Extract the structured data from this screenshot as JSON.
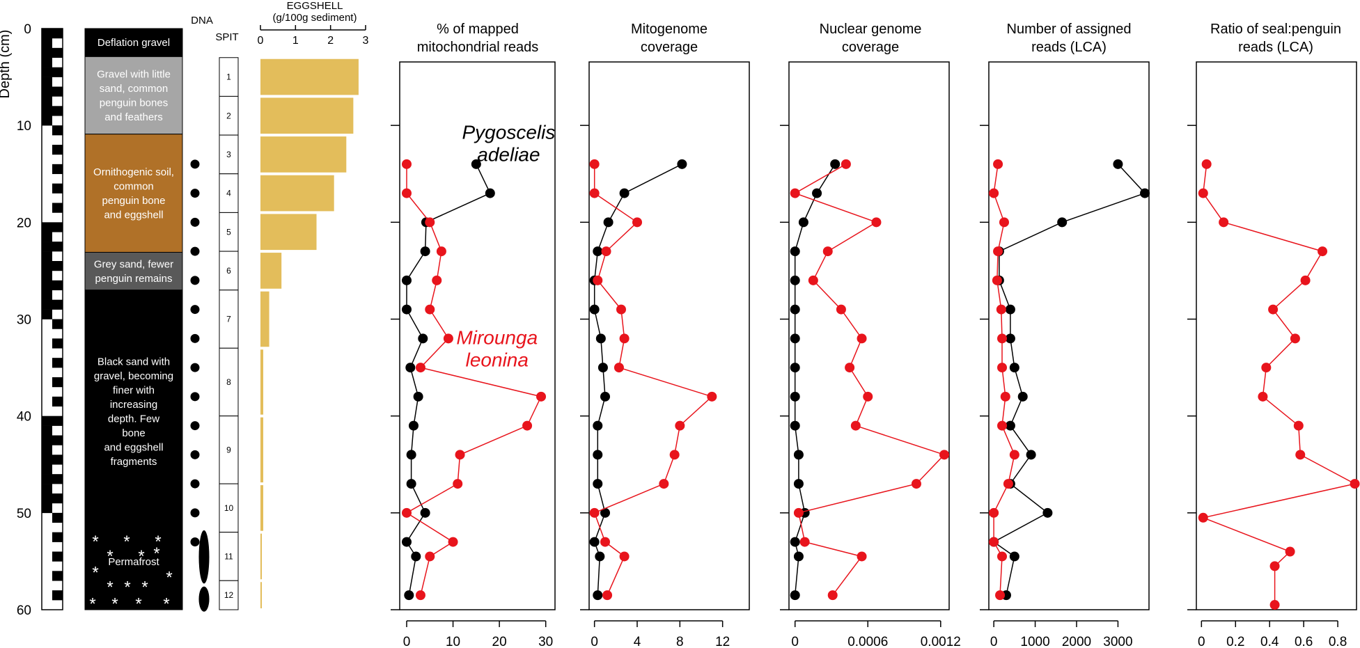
{
  "depth_axis": {
    "label": "Depth (cm)",
    "ticks": [
      "0",
      "10",
      "20",
      "30",
      "40",
      "50",
      "60"
    ],
    "ylim": [
      0,
      60
    ]
  },
  "strat": {
    "dna_label": "DNA",
    "spit_label": "SPIT",
    "units": [
      {
        "text": "Deflation gravel",
        "top": 0,
        "bottom": 2.9,
        "color": "#000000",
        "text_color": "#ffffff"
      },
      {
        "text": "Gravel with little\nsand, common\npenguin bones\nand feathers",
        "top": 2.9,
        "bottom": 10.9,
        "color": "#a6a6a6",
        "text_color": "#ffffff"
      },
      {
        "text": "Ornithogenic soil,\ncommon\npenguin bone\nand eggshell",
        "top": 10.9,
        "bottom": 23.1,
        "color": "#b07128",
        "text_color": "#ffffff"
      },
      {
        "text": "Grey sand, fewer\npenguin remains",
        "top": 23.1,
        "bottom": 27.0,
        "color": "#595959",
        "text_color": "#ffffff"
      },
      {
        "text": "Black sand with\ngravel, becoming\nfiner with\nincreasing\ndepth. Few\nbone\nand eggshell\nfragments",
        "top": 27.0,
        "bottom": 52.1,
        "color": "#000000",
        "text_color": "#ffffff"
      },
      {
        "text": "Permafrost",
        "top": 52.1,
        "bottom": 60.0,
        "color": "#000000",
        "text_color": "#ffffff"
      }
    ],
    "dna_depths": [
      14,
      17,
      20,
      23,
      26,
      29,
      32,
      35,
      38,
      41,
      44,
      47,
      50,
      53
    ],
    "spits": [
      {
        "label": "1",
        "top": 3,
        "bottom": 7
      },
      {
        "label": "2",
        "top": 7,
        "bottom": 11
      },
      {
        "label": "3",
        "top": 11,
        "bottom": 15
      },
      {
        "label": "4",
        "top": 15,
        "bottom": 19
      },
      {
        "label": "5",
        "top": 19,
        "bottom": 23
      },
      {
        "label": "6",
        "top": 23,
        "bottom": 27
      },
      {
        "label": "7",
        "top": 27,
        "bottom": 33
      },
      {
        "label": "8",
        "top": 33,
        "bottom": 40
      },
      {
        "label": "9",
        "top": 40,
        "bottom": 47
      },
      {
        "label": "10",
        "top": 47,
        "bottom": 52
      },
      {
        "label": "11",
        "top": 52,
        "bottom": 57
      },
      {
        "label": "12",
        "top": 57,
        "bottom": 60
      }
    ],
    "permafrost_lenses": [
      {
        "top": 51.8,
        "bottom": 57.3
      },
      {
        "top": 57.6,
        "bottom": 60.2
      }
    ]
  },
  "chart_data": [
    {
      "type": "bar",
      "title": "EGGSHELL\n(g/100g sediment)",
      "orientation": "horizontal",
      "xlim": [
        0,
        3
      ],
      "xticks": [
        "0",
        "1",
        "2",
        "3"
      ],
      "color": "#e3bd5b",
      "bars": [
        {
          "top": 3,
          "bottom": 7,
          "value": 2.8
        },
        {
          "top": 7,
          "bottom": 11,
          "value": 2.65
        },
        {
          "top": 11,
          "bottom": 15,
          "value": 2.45
        },
        {
          "top": 15,
          "bottom": 19,
          "value": 2.1
        },
        {
          "top": 19,
          "bottom": 23,
          "value": 1.6
        },
        {
          "top": 23,
          "bottom": 27,
          "value": 0.6
        },
        {
          "top": 27,
          "bottom": 33,
          "value": 0.25
        },
        {
          "top": 33,
          "bottom": 40,
          "value": 0.08
        },
        {
          "top": 40,
          "bottom": 47,
          "value": 0.08
        },
        {
          "top": 47,
          "bottom": 52,
          "value": 0.08
        },
        {
          "top": 52,
          "bottom": 57,
          "value": 0.04
        },
        {
          "top": 57,
          "bottom": 60,
          "value": 0.04
        }
      ]
    },
    {
      "type": "line",
      "title": "% of mapped\nmitochondrial reads",
      "xlim": [
        -1.5,
        32
      ],
      "xticks": [
        0,
        10,
        20,
        30
      ],
      "xtick_labels": [
        "0",
        "10",
        "20",
        "30"
      ],
      "labels": [
        {
          "text": "Pygoscelis\nadeliae",
          "color": "#000000",
          "anchor_x": 22,
          "anchor_y": 11.4
        },
        {
          "text": "Mirounga\nleonina",
          "color": "#e8141c",
          "anchor_x": 19.5,
          "anchor_y": 32.6
        }
      ],
      "series": [
        {
          "color": "#000000",
          "points": [
            [
              15,
              14
            ],
            [
              18,
              17
            ],
            [
              4.2,
              20
            ],
            [
              4,
              23
            ],
            [
              0,
              26
            ],
            [
              0,
              29
            ],
            [
              3.5,
              32
            ],
            [
              0.8,
              35
            ],
            [
              2.5,
              38
            ],
            [
              1.5,
              41
            ],
            [
              1,
              44
            ],
            [
              1,
              47
            ],
            [
              4,
              50
            ],
            [
              0,
              53
            ],
            [
              2,
              54.5
            ],
            [
              0.5,
              58.5
            ]
          ]
        },
        {
          "color": "#e8141c",
          "points": [
            [
              0,
              14
            ],
            [
              0,
              17
            ],
            [
              5,
              20
            ],
            [
              7.5,
              23
            ],
            [
              6.5,
              26
            ],
            [
              5,
              29
            ],
            [
              9,
              32
            ],
            [
              3,
              35
            ],
            [
              29,
              38
            ],
            [
              26,
              41
            ],
            [
              11.5,
              44
            ],
            [
              11,
              47
            ],
            [
              0,
              50
            ],
            [
              10,
              53
            ],
            [
              5,
              54.5
            ],
            [
              3,
              58.5
            ]
          ]
        }
      ]
    },
    {
      "type": "line",
      "title": "Mitogenome\ncoverage",
      "xlim": [
        -0.5,
        14.5
      ],
      "xticks": [
        0,
        4,
        8,
        12
      ],
      "xtick_labels": [
        "0",
        "4",
        "8",
        "12"
      ],
      "series": [
        {
          "color": "#000000",
          "points": [
            [
              8.2,
              14
            ],
            [
              2.8,
              17
            ],
            [
              1.3,
              20
            ],
            [
              0.3,
              23
            ],
            [
              0,
              26
            ],
            [
              0,
              29
            ],
            [
              0.6,
              32
            ],
            [
              0.8,
              35
            ],
            [
              1,
              38
            ],
            [
              0.3,
              41
            ],
            [
              0.3,
              44
            ],
            [
              0.3,
              47
            ],
            [
              1,
              50
            ],
            [
              0,
              53
            ],
            [
              0.5,
              54.5
            ],
            [
              0.3,
              58.5
            ]
          ]
        },
        {
          "color": "#e8141c",
          "points": [
            [
              0,
              14
            ],
            [
              0,
              17
            ],
            [
              4,
              20
            ],
            [
              1.1,
              23
            ],
            [
              0.3,
              26
            ],
            [
              2.5,
              29
            ],
            [
              2.8,
              32
            ],
            [
              2.3,
              35
            ],
            [
              11,
              38
            ],
            [
              8,
              41
            ],
            [
              7.5,
              44
            ],
            [
              6.5,
              47
            ],
            [
              0,
              50
            ],
            [
              1,
              53
            ],
            [
              2.8,
              54.5
            ],
            [
              1.2,
              58.5
            ]
          ]
        }
      ]
    },
    {
      "type": "line",
      "title": "Nuclear genome\ncoverage",
      "xlim": [
        -5e-05,
        0.00127
      ],
      "xticks": [
        0,
        0.0006,
        0.0012
      ],
      "xtick_labels": [
        "0",
        "0.0006",
        "0.0012"
      ],
      "series": [
        {
          "color": "#000000",
          "points": [
            [
              0.00033,
              14
            ],
            [
              0.00018,
              17
            ],
            [
              7e-05,
              20
            ],
            [
              0,
              23
            ],
            [
              0,
              26
            ],
            [
              0,
              29
            ],
            [
              0,
              32
            ],
            [
              0,
              35
            ],
            [
              0,
              38
            ],
            [
              0,
              41
            ],
            [
              3e-05,
              44
            ],
            [
              3e-05,
              47
            ],
            [
              8e-05,
              50
            ],
            [
              0,
              53
            ],
            [
              3e-05,
              54.5
            ],
            [
              0,
              58.5
            ]
          ]
        },
        {
          "color": "#e8141c",
          "points": [
            [
              0.00042,
              14
            ],
            [
              0,
              17
            ],
            [
              0.00067,
              20
            ],
            [
              0.00027,
              23
            ],
            [
              0.00015,
              26
            ],
            [
              0.00038,
              29
            ],
            [
              0.00055,
              32
            ],
            [
              0.00045,
              35
            ],
            [
              0.0006,
              38
            ],
            [
              0.0005,
              41
            ],
            [
              0.00123,
              44
            ],
            [
              0.001,
              47
            ],
            [
              3e-05,
              50
            ],
            [
              8e-05,
              53
            ],
            [
              0.00055,
              54.5
            ],
            [
              0.00031,
              58.5
            ]
          ]
        }
      ]
    },
    {
      "type": "line",
      "title": "Number of assigned\nreads (LCA)",
      "xlim": [
        -120,
        3750
      ],
      "xticks": [
        0,
        1000,
        2000,
        3000
      ],
      "xtick_labels": [
        "0",
        "1000",
        "2000",
        "3000"
      ],
      "series": [
        {
          "color": "#000000",
          "points": [
            [
              3000,
              14
            ],
            [
              3650,
              17
            ],
            [
              1650,
              20
            ],
            [
              130,
              23
            ],
            [
              130,
              26
            ],
            [
              400,
              29
            ],
            [
              400,
              32
            ],
            [
              500,
              35
            ],
            [
              700,
              38
            ],
            [
              400,
              41
            ],
            [
              900,
              44
            ],
            [
              400,
              47
            ],
            [
              1300,
              50
            ],
            [
              0,
              53
            ],
            [
              500,
              54.5
            ],
            [
              300,
              58.5
            ]
          ]
        },
        {
          "color": "#e8141c",
          "points": [
            [
              100,
              14
            ],
            [
              0,
              17
            ],
            [
              250,
              20
            ],
            [
              100,
              23
            ],
            [
              80,
              26
            ],
            [
              180,
              29
            ],
            [
              200,
              32
            ],
            [
              200,
              35
            ],
            [
              280,
              38
            ],
            [
              200,
              41
            ],
            [
              500,
              44
            ],
            [
              350,
              47
            ],
            [
              0,
              50
            ],
            [
              0,
              53
            ],
            [
              200,
              54.5
            ],
            [
              150,
              58.5
            ]
          ]
        }
      ]
    },
    {
      "type": "line",
      "title": "Ratio of seal:penguin\nreads (LCA)",
      "xlim": [
        -0.03,
        0.91
      ],
      "xticks": [
        0,
        0.2,
        0.4,
        0.6,
        0.8
      ],
      "xtick_labels": [
        "0",
        "0.2",
        "0.4",
        "0.6",
        "0.8"
      ],
      "series": [
        {
          "color": "#e8141c",
          "points": [
            [
              0.03,
              14
            ],
            [
              0.01,
              17
            ],
            [
              0.13,
              20
            ],
            [
              0.71,
              23
            ],
            [
              0.61,
              26
            ],
            [
              0.42,
              29
            ],
            [
              0.55,
              32
            ],
            [
              0.38,
              35
            ],
            [
              0.36,
              38
            ],
            [
              0.57,
              41
            ],
            [
              0.58,
              44
            ],
            [
              0.9,
              47
            ],
            [
              0.01,
              50.5
            ],
            [
              0.52,
              54
            ],
            [
              0.43,
              55.5
            ],
            [
              0.43,
              59.5
            ]
          ]
        }
      ]
    }
  ]
}
